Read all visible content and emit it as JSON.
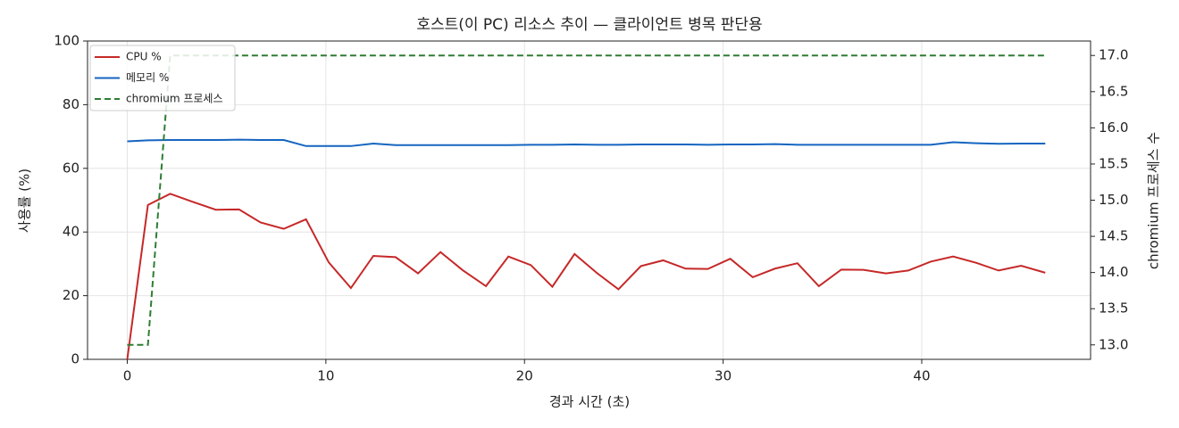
{
  "chart_data": {
    "type": "line",
    "title": "호스트(이 PC) 리소스 추이 — 클라이언트 병목 판단용",
    "xlabel": "경과 시간 (초)",
    "ylabel": "사용률 (%)",
    "y2label": "chromium 프로세스 수",
    "x": [
      0,
      1.04,
      2.16,
      3.29,
      4.46,
      5.63,
      6.71,
      7.88,
      9.0,
      10.14,
      11.26,
      12.39,
      13.51,
      14.64,
      15.77,
      16.89,
      18.06,
      19.19,
      20.32,
      21.4,
      22.52,
      23.65,
      24.73,
      25.86,
      26.98,
      28.11,
      29.23,
      30.36,
      31.49,
      32.61,
      33.74,
      34.82,
      35.95,
      37.07,
      38.2,
      39.32,
      40.45,
      41.58,
      42.75,
      43.87,
      45.0,
      46.22
    ],
    "series": [
      {
        "name": "CPU %",
        "color": "#c62828",
        "linestyle": "solid",
        "axis": "y",
        "values": [
          0,
          48.5,
          52,
          49.5,
          47,
          47.1,
          43,
          41,
          44,
          30.5,
          22.4,
          32.5,
          32.1,
          27,
          33.7,
          28,
          23,
          32.3,
          29.6,
          22.8,
          33.1,
          27.1,
          22,
          29.3,
          31.1,
          28.5,
          28.4,
          31.6,
          25.8,
          28.5,
          30.2,
          23,
          28.2,
          28.1,
          27,
          27.9,
          30.7,
          32.3,
          30.3,
          27.9,
          29.4,
          27.2
        ]
      },
      {
        "name": "메모리 %",
        "color": "#1565c0",
        "linestyle": "solid",
        "axis": "y",
        "values": [
          68.5,
          68.8,
          68.9,
          68.9,
          68.9,
          69.0,
          68.9,
          68.9,
          67.0,
          67.0,
          67.0,
          67.8,
          67.3,
          67.3,
          67.3,
          67.3,
          67.3,
          67.3,
          67.4,
          67.4,
          67.5,
          67.4,
          67.4,
          67.5,
          67.5,
          67.5,
          67.4,
          67.5,
          67.5,
          67.6,
          67.4,
          67.4,
          67.4,
          67.4,
          67.4,
          67.4,
          67.4,
          68.2,
          67.9,
          67.7,
          67.8,
          67.8
        ]
      },
      {
        "name": "chromium 프로세스",
        "color": "#2e7d32",
        "linestyle": "dashed",
        "axis": "y2",
        "values": [
          13,
          13,
          17,
          17,
          17,
          17,
          17,
          17,
          17,
          17,
          17,
          17,
          17,
          17,
          17,
          17,
          17,
          17,
          17,
          17,
          17,
          17,
          17,
          17,
          17,
          17,
          17,
          17,
          17,
          17,
          17,
          17,
          17,
          17,
          17,
          17,
          17,
          17,
          17,
          17,
          17,
          17
        ]
      }
    ],
    "xlim": [
      -2.0,
      48.5
    ],
    "xticks": [
      0,
      10,
      20,
      30,
      40
    ],
    "ylim": [
      0,
      100
    ],
    "yticks": [
      0,
      20,
      40,
      60,
      80,
      100
    ],
    "y2lim": [
      12.8,
      17.2
    ],
    "y2ticks": [
      {
        "value": 13,
        "label": "13.0"
      },
      {
        "value": 13.5,
        "label": "13.5"
      },
      {
        "value": 14,
        "label": "14.0"
      },
      {
        "value": 14.5,
        "label": "14.5"
      },
      {
        "value": 15,
        "label": "15.0"
      },
      {
        "value": 15.5,
        "label": "15.5"
      },
      {
        "value": 16,
        "label": "16.0"
      },
      {
        "value": 16.5,
        "label": "16.5"
      },
      {
        "value": 17,
        "label": "17.0"
      }
    ],
    "grid": true,
    "legend": "upper-left"
  }
}
